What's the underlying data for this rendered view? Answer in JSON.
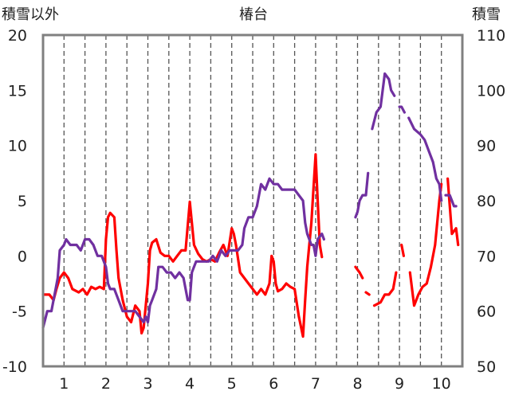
{
  "chart_data": {
    "type": "line",
    "title": "椿台",
    "ylabel_left": "積雪以外",
    "ylabel_right": "積雪",
    "ylim_left": [
      -10,
      20
    ],
    "ylim_right": [
      50,
      110
    ],
    "yticks_left": [
      "20",
      "15",
      "10",
      "5",
      "0",
      "-5",
      "-10"
    ],
    "yticks_right": [
      "110",
      "100",
      "90",
      "80",
      "70",
      "60",
      "50"
    ],
    "xlim": [
      0.5,
      10.5
    ],
    "xticks": [
      "1",
      "2",
      "3",
      "4",
      "5",
      "6",
      "7",
      "8",
      "9",
      "10"
    ],
    "grid": {
      "vertical": true,
      "dashed": true
    },
    "colors": {
      "red": "#ff0000",
      "purple": "#7030a0",
      "frame": "#808080"
    },
    "series": [
      {
        "axis": "left",
        "color": "#ff0000",
        "segments": [
          [
            [
              0.5,
              -3.5
            ],
            [
              0.65,
              -3.5
            ],
            [
              0.75,
              -4.0
            ],
            [
              0.82,
              -3.0
            ],
            [
              0.9,
              -2.0
            ],
            [
              1.0,
              -1.5
            ],
            [
              1.1,
              -2.0
            ],
            [
              1.2,
              -3.0
            ],
            [
              1.35,
              -3.3
            ],
            [
              1.45,
              -3.0
            ],
            [
              1.55,
              -3.5
            ],
            [
              1.65,
              -2.8
            ],
            [
              1.75,
              -3.0
            ],
            [
              1.85,
              -2.8
            ],
            [
              1.95,
              -3.0
            ],
            [
              2.0,
              1.5
            ],
            [
              2.05,
              3.5
            ],
            [
              2.1,
              3.9
            ],
            [
              2.2,
              3.5
            ],
            [
              2.25,
              0.5
            ],
            [
              2.3,
              -2.0
            ],
            [
              2.4,
              -4.0
            ],
            [
              2.5,
              -5.5
            ],
            [
              2.6,
              -6.0
            ],
            [
              2.7,
              -4.5
            ],
            [
              2.8,
              -5.0
            ],
            [
              2.85,
              -7.0
            ],
            [
              2.9,
              -6.5
            ],
            [
              3.0,
              -2.5
            ],
            [
              3.05,
              0.5
            ],
            [
              3.1,
              1.2
            ],
            [
              3.2,
              1.5
            ],
            [
              3.3,
              0.3
            ],
            [
              3.4,
              0.0
            ],
            [
              3.5,
              0.0
            ],
            [
              3.6,
              -0.5
            ],
            [
              3.7,
              0.0
            ],
            [
              3.8,
              0.5
            ],
            [
              3.9,
              0.5
            ],
            [
              4.0,
              4.9
            ],
            [
              4.1,
              1.0
            ],
            [
              4.2,
              0.2
            ],
            [
              4.3,
              -0.3
            ],
            [
              4.4,
              -0.5
            ],
            [
              4.5,
              -0.3
            ],
            [
              4.6,
              -0.5
            ],
            [
              4.7,
              0.3
            ],
            [
              4.8,
              1.0
            ],
            [
              4.9,
              0.0
            ],
            [
              5.0,
              2.5
            ],
            [
              5.05,
              2.0
            ],
            [
              5.1,
              1.0
            ],
            [
              5.2,
              -1.5
            ],
            [
              5.3,
              -2.0
            ],
            [
              5.4,
              -2.5
            ],
            [
              5.5,
              -3.0
            ],
            [
              5.6,
              -3.5
            ],
            [
              5.7,
              -3.0
            ],
            [
              5.8,
              -3.5
            ],
            [
              5.9,
              -2.5
            ],
            [
              5.95,
              0.0
            ],
            [
              6.0,
              -0.5
            ],
            [
              6.05,
              -2.5
            ],
            [
              6.1,
              -3.2
            ],
            [
              6.2,
              -3.0
            ],
            [
              6.3,
              -2.5
            ],
            [
              6.4,
              -2.8
            ],
            [
              6.5,
              -3.0
            ],
            [
              6.6,
              -5.5
            ],
            [
              6.7,
              -7.3
            ],
            [
              6.75,
              -4.0
            ],
            [
              6.8,
              -1.0
            ],
            [
              6.9,
              3.0
            ],
            [
              7.0,
              9.2
            ],
            [
              7.05,
              5.0
            ],
            [
              7.1,
              1.0
            ],
            [
              7.15,
              -0.1
            ]
          ],
          [
            [
              7.95,
              -1.0
            ],
            [
              8.05,
              -1.5
            ],
            [
              8.12,
              -2.0
            ]
          ],
          [
            [
              8.2,
              -3.3
            ],
            [
              8.28,
              -3.5
            ]
          ],
          [
            [
              8.4,
              -4.5
            ],
            [
              8.55,
              -4.2
            ],
            [
              8.65,
              -3.5
            ],
            [
              8.75,
              -3.5
            ],
            [
              8.85,
              -3.0
            ],
            [
              8.92,
              -1.5
            ]
          ],
          [
            [
              9.05,
              1.0
            ],
            [
              9.1,
              0.0
            ]
          ],
          [
            [
              9.25,
              -1.5
            ],
            [
              9.35,
              -4.5
            ],
            [
              9.45,
              -3.5
            ],
            [
              9.55,
              -2.8
            ],
            [
              9.65,
              -2.5
            ],
            [
              9.75,
              -1.0
            ],
            [
              9.85,
              1.0
            ],
            [
              9.95,
              5.0
            ],
            [
              10.0,
              6.5
            ]
          ],
          [
            [
              10.15,
              7.0
            ],
            [
              10.25,
              2.0
            ],
            [
              10.35,
              2.5
            ],
            [
              10.4,
              1.0
            ]
          ]
        ]
      },
      {
        "axis": "right",
        "color": "#7030a0",
        "segments": [
          [
            [
              0.5,
              57
            ],
            [
              0.6,
              60
            ],
            [
              0.7,
              60
            ],
            [
              0.8,
              64
            ],
            [
              0.85,
              66
            ],
            [
              0.9,
              71
            ],
            [
              1.0,
              72
            ],
            [
              1.05,
              73
            ],
            [
              1.15,
              72
            ],
            [
              1.3,
              72
            ],
            [
              1.4,
              71
            ],
            [
              1.5,
              73
            ],
            [
              1.6,
              73
            ],
            [
              1.7,
              72
            ],
            [
              1.8,
              70
            ],
            [
              1.9,
              70
            ],
            [
              2.0,
              68
            ],
            [
              2.05,
              65
            ],
            [
              2.1,
              64
            ],
            [
              2.2,
              64
            ],
            [
              2.3,
              62
            ],
            [
              2.4,
              60
            ],
            [
              2.5,
              60
            ],
            [
              2.6,
              60
            ],
            [
              2.7,
              60
            ],
            [
              2.8,
              59
            ],
            [
              2.9,
              58
            ],
            [
              2.95,
              59
            ],
            [
              3.0,
              58
            ],
            [
              3.05,
              61
            ],
            [
              3.1,
              62
            ],
            [
              3.2,
              64
            ],
            [
              3.25,
              68
            ],
            [
              3.35,
              68
            ],
            [
              3.45,
              67
            ],
            [
              3.55,
              67
            ],
            [
              3.65,
              66
            ],
            [
              3.75,
              67
            ],
            [
              3.85,
              66
            ],
            [
              3.95,
              62
            ],
            [
              4.0,
              62
            ],
            [
              4.05,
              67
            ],
            [
              4.15,
              69
            ],
            [
              4.25,
              69
            ],
            [
              4.35,
              69
            ],
            [
              4.45,
              69
            ],
            [
              4.55,
              70
            ],
            [
              4.65,
              69
            ],
            [
              4.75,
              71
            ],
            [
              4.85,
              70
            ],
            [
              4.95,
              71
            ],
            [
              5.05,
              71
            ],
            [
              5.15,
              71
            ],
            [
              5.25,
              72
            ],
            [
              5.3,
              75
            ],
            [
              5.4,
              77
            ],
            [
              5.5,
              77
            ],
            [
              5.6,
              79
            ],
            [
              5.7,
              83
            ],
            [
              5.8,
              82
            ],
            [
              5.85,
              83
            ],
            [
              5.9,
              84
            ],
            [
              6.0,
              83
            ],
            [
              6.1,
              83
            ],
            [
              6.2,
              82
            ],
            [
              6.3,
              82
            ],
            [
              6.4,
              82
            ],
            [
              6.5,
              82
            ],
            [
              6.6,
              81
            ],
            [
              6.7,
              80
            ],
            [
              6.75,
              76
            ],
            [
              6.8,
              74
            ],
            [
              6.9,
              72
            ],
            [
              6.95,
              72
            ],
            [
              7.0,
              70
            ],
            [
              7.05,
              73
            ],
            [
              7.15,
              74
            ],
            [
              7.2,
              73
            ]
          ],
          [
            [
              7.95,
              77
            ],
            [
              8.0,
              78
            ],
            [
              8.05,
              80
            ],
            [
              8.12,
              81
            ],
            [
              8.2,
              81
            ],
            [
              8.25,
              85
            ]
          ],
          [
            [
              8.35,
              93
            ],
            [
              8.45,
              96
            ],
            [
              8.55,
              97
            ],
            [
              8.65,
              103
            ],
            [
              8.75,
              102
            ],
            [
              8.8,
              100
            ],
            [
              8.88,
              99
            ]
          ],
          [
            [
              9.0,
              97
            ],
            [
              9.05,
              97
            ],
            [
              9.12,
              96
            ]
          ],
          [
            [
              9.22,
              95
            ],
            [
              9.35,
              93
            ],
            [
              9.5,
              92
            ],
            [
              9.6,
              91
            ],
            [
              9.7,
              89
            ],
            [
              9.8,
              87
            ],
            [
              9.88,
              84
            ],
            [
              9.95,
              83
            ],
            [
              10.0,
              80
            ]
          ],
          [
            [
              10.1,
              81
            ],
            [
              10.2,
              81
            ],
            [
              10.25,
              80
            ],
            [
              10.3,
              79
            ],
            [
              10.35,
              79
            ]
          ]
        ]
      }
    ]
  }
}
